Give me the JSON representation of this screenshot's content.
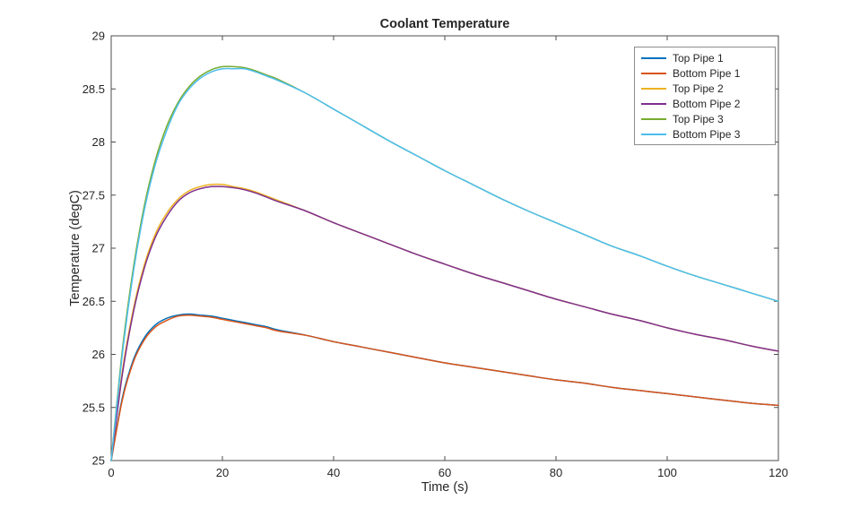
{
  "figure": {
    "background": "#ffffff",
    "axis_color": "#4d4d4d",
    "text_color": "#262626"
  },
  "chart_data": {
    "type": "line",
    "title": "Coolant Temperature",
    "xlabel": "Time (s)",
    "ylabel": "Temperature (degC)",
    "xlim": [
      0,
      120
    ],
    "ylim": [
      25,
      29
    ],
    "x_ticks": [
      0,
      20,
      40,
      60,
      80,
      100,
      120
    ],
    "y_ticks": [
      25,
      25.5,
      26,
      26.5,
      27,
      27.5,
      28,
      28.5,
      29
    ],
    "grid": false,
    "legend_position": "northeast",
    "x": [
      0,
      2,
      4,
      6,
      8,
      10,
      12,
      14,
      16,
      18,
      20,
      22,
      24,
      26,
      28,
      30,
      35,
      40,
      45,
      50,
      55,
      60,
      65,
      70,
      75,
      80,
      85,
      90,
      95,
      100,
      105,
      110,
      115,
      120
    ],
    "series": [
      {
        "name": "Top Pipe 1",
        "color": "#0072BD",
        "values": [
          25,
          25.59,
          25.95,
          26.16,
          26.28,
          26.34,
          26.37,
          26.38,
          26.37,
          26.36,
          26.34,
          26.32,
          26.3,
          26.28,
          26.26,
          26.23,
          26.18,
          26.12,
          26.07,
          26.02,
          25.97,
          25.92,
          25.88,
          25.84,
          25.8,
          25.76,
          25.73,
          25.69,
          25.66,
          25.63,
          25.6,
          25.57,
          25.54,
          25.52
        ]
      },
      {
        "name": "Bottom Pipe 1",
        "color": "#D95319",
        "values": [
          25,
          25.57,
          25.93,
          26.14,
          26.26,
          26.32,
          26.36,
          26.37,
          26.36,
          26.35,
          26.33,
          26.31,
          26.29,
          26.27,
          26.25,
          26.22,
          26.18,
          26.12,
          26.07,
          26.02,
          25.97,
          25.92,
          25.88,
          25.84,
          25.8,
          25.76,
          25.73,
          25.69,
          25.66,
          25.63,
          25.6,
          25.57,
          25.54,
          25.52
        ]
      },
      {
        "name": "Top Pipe 2",
        "color": "#EDB120",
        "values": [
          25,
          25.84,
          26.43,
          26.85,
          27.14,
          27.33,
          27.46,
          27.54,
          27.58,
          27.6,
          27.6,
          27.58,
          27.56,
          27.53,
          27.49,
          27.45,
          27.35,
          27.24,
          27.14,
          27.04,
          26.94,
          26.85,
          26.76,
          26.68,
          26.6,
          26.52,
          26.45,
          26.38,
          26.32,
          26.25,
          26.19,
          26.14,
          26.08,
          26.03
        ]
      },
      {
        "name": "Bottom Pipe 2",
        "color": "#7E2F8E",
        "values": [
          25,
          25.81,
          26.4,
          26.82,
          27.11,
          27.3,
          27.44,
          27.52,
          27.56,
          27.58,
          27.58,
          27.57,
          27.55,
          27.52,
          27.48,
          27.44,
          27.35,
          27.24,
          27.14,
          27.04,
          26.94,
          26.85,
          26.76,
          26.68,
          26.6,
          26.52,
          26.45,
          26.38,
          26.32,
          26.25,
          26.19,
          26.14,
          26.08,
          26.03
        ]
      },
      {
        "name": "Top Pipe 3",
        "color": "#77AC30",
        "values": [
          25,
          26.04,
          26.82,
          27.41,
          27.84,
          28.15,
          28.37,
          28.52,
          28.62,
          28.68,
          28.71,
          28.71,
          28.7,
          28.67,
          28.63,
          28.59,
          28.46,
          28.31,
          28.16,
          28.01,
          27.87,
          27.73,
          27.6,
          27.47,
          27.35,
          27.24,
          27.13,
          27.02,
          26.93,
          26.83,
          26.74,
          26.66,
          26.58,
          26.5
        ]
      },
      {
        "name": "Bottom Pipe 3",
        "color": "#4DBEEE",
        "values": [
          25,
          26,
          26.78,
          27.37,
          27.8,
          28.11,
          28.35,
          28.5,
          28.6,
          28.66,
          28.69,
          28.69,
          28.69,
          28.66,
          28.62,
          28.58,
          28.46,
          28.31,
          28.16,
          28.01,
          27.87,
          27.73,
          27.6,
          27.47,
          27.35,
          27.24,
          27.13,
          27.02,
          26.93,
          26.83,
          26.74,
          26.66,
          26.58,
          26.5
        ]
      }
    ]
  }
}
